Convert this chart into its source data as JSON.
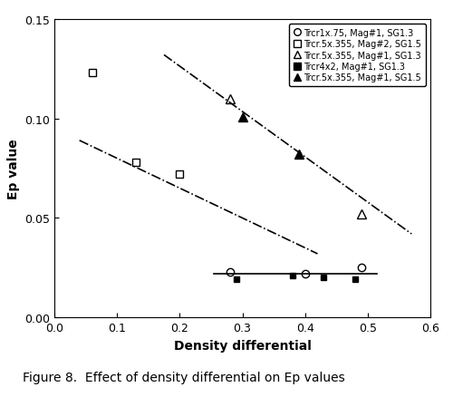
{
  "title": "Figure 8.  Effect of density differential on Ep values",
  "xlabel": "Density differential",
  "ylabel": "Ep value",
  "xlim": [
    0,
    0.6
  ],
  "ylim": [
    0,
    0.15
  ],
  "xticks": [
    0,
    0.1,
    0.2,
    0.3,
    0.4,
    0.5,
    0.6
  ],
  "yticks": [
    0,
    0.05,
    0.1,
    0.15
  ],
  "series": [
    {
      "label": "Trcr1x.75, Mag#1, SG1.3",
      "marker": "o",
      "fillstyle": "none",
      "markersize": 6,
      "x": [
        0.28,
        0.4,
        0.49
      ],
      "y": [
        0.023,
        0.022,
        0.025
      ],
      "has_line": true,
      "line_style": "-",
      "line_x": [
        0.255,
        0.515
      ],
      "line_y": [
        0.022,
        0.022
      ]
    },
    {
      "label": "Trcr.5x.355, Mag#2, SG1.5",
      "marker": "s",
      "fillstyle": "none",
      "markersize": 6,
      "x": [
        0.06,
        0.13,
        0.2
      ],
      "y": [
        0.123,
        0.078,
        0.072
      ],
      "has_line": true,
      "line_style": "-.",
      "line_x": [
        0.04,
        0.42
      ],
      "line_y": [
        0.089,
        0.032
      ]
    },
    {
      "label": "Trcr.5x.355, Mag#1, SG1.3",
      "marker": "^",
      "fillstyle": "none",
      "markersize": 7,
      "x": [
        0.28,
        0.49
      ],
      "y": [
        0.11,
        0.052
      ],
      "has_line": true,
      "line_style": "-.",
      "line_x": [
        0.175,
        0.57
      ],
      "line_y": [
        0.132,
        0.042
      ]
    },
    {
      "label": "Trcr4x2, Mag#1, SG1.3",
      "marker": "s",
      "fillstyle": "full",
      "markersize": 5,
      "x": [
        0.29,
        0.38,
        0.43,
        0.48
      ],
      "y": [
        0.019,
        0.021,
        0.02,
        0.019
      ],
      "has_line": false
    },
    {
      "label": "Trcr.5x.355, Mag#1, SG1.5",
      "marker": "^",
      "fillstyle": "full",
      "markersize": 7,
      "x": [
        0.3,
        0.39
      ],
      "y": [
        0.101,
        0.082
      ],
      "has_line": false
    }
  ],
  "line_steep1": {
    "style": "-.",
    "x": [
      0.04,
      0.42
    ],
    "y": [
      0.089,
      0.032
    ]
  },
  "line_steep2": {
    "style": "-.",
    "x": [
      0.175,
      0.57
    ],
    "y": [
      0.132,
      0.042
    ]
  },
  "line_flat": {
    "style": "-",
    "x": [
      0.255,
      0.515
    ],
    "y": [
      0.022,
      0.022
    ]
  }
}
